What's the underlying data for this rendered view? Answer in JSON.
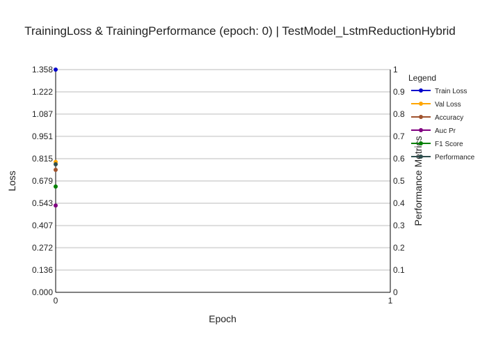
{
  "chart_data": {
    "type": "line",
    "title": "TrainingLoss & TrainingPerformance (epoch: 0) | TestModel_LstmReductionHybrid",
    "xlabel": "Epoch",
    "ylabel_left": "Loss",
    "ylabel_right": "Performance Metrics",
    "x_ticks": [
      "0",
      "1"
    ],
    "xlim": [
      0,
      1
    ],
    "ylim_left": [
      0.0,
      1.358
    ],
    "y_left_ticks": [
      "0.000",
      "0.136",
      "0.272",
      "0.407",
      "0.543",
      "0.679",
      "0.815",
      "0.951",
      "1.087",
      "1.222",
      "1.358"
    ],
    "ylim_right": [
      0,
      1
    ],
    "y_right_ticks": [
      "0",
      "0.1",
      "0.2",
      "0.3",
      "0.4",
      "0.5",
      "0.6",
      "0.7",
      "0.8",
      "0.9",
      "1"
    ],
    "grid": true,
    "legend": {
      "title": "Legend",
      "position": "right"
    },
    "series": [
      {
        "name": "Train Loss",
        "axis": "left",
        "color": "#0000cc",
        "x": [
          0
        ],
        "y": [
          1.358
        ]
      },
      {
        "name": "Val Loss",
        "axis": "left",
        "color": "#ffa500",
        "x": [
          0
        ],
        "y": [
          0.795
        ]
      },
      {
        "name": "Accuracy",
        "axis": "right",
        "color": "#a0522d",
        "x": [
          0
        ],
        "y": [
          0.55
        ]
      },
      {
        "name": "Auc Pr",
        "axis": "right",
        "color": "#800080",
        "x": [
          0
        ],
        "y": [
          0.39
        ]
      },
      {
        "name": "F1 Score",
        "axis": "right",
        "color": "#008000",
        "x": [
          0
        ],
        "y": [
          0.475
        ]
      },
      {
        "name": "Performance",
        "axis": "right",
        "color": "#2f4f4f",
        "x": [
          0
        ],
        "y": [
          0.575
        ]
      }
    ]
  }
}
